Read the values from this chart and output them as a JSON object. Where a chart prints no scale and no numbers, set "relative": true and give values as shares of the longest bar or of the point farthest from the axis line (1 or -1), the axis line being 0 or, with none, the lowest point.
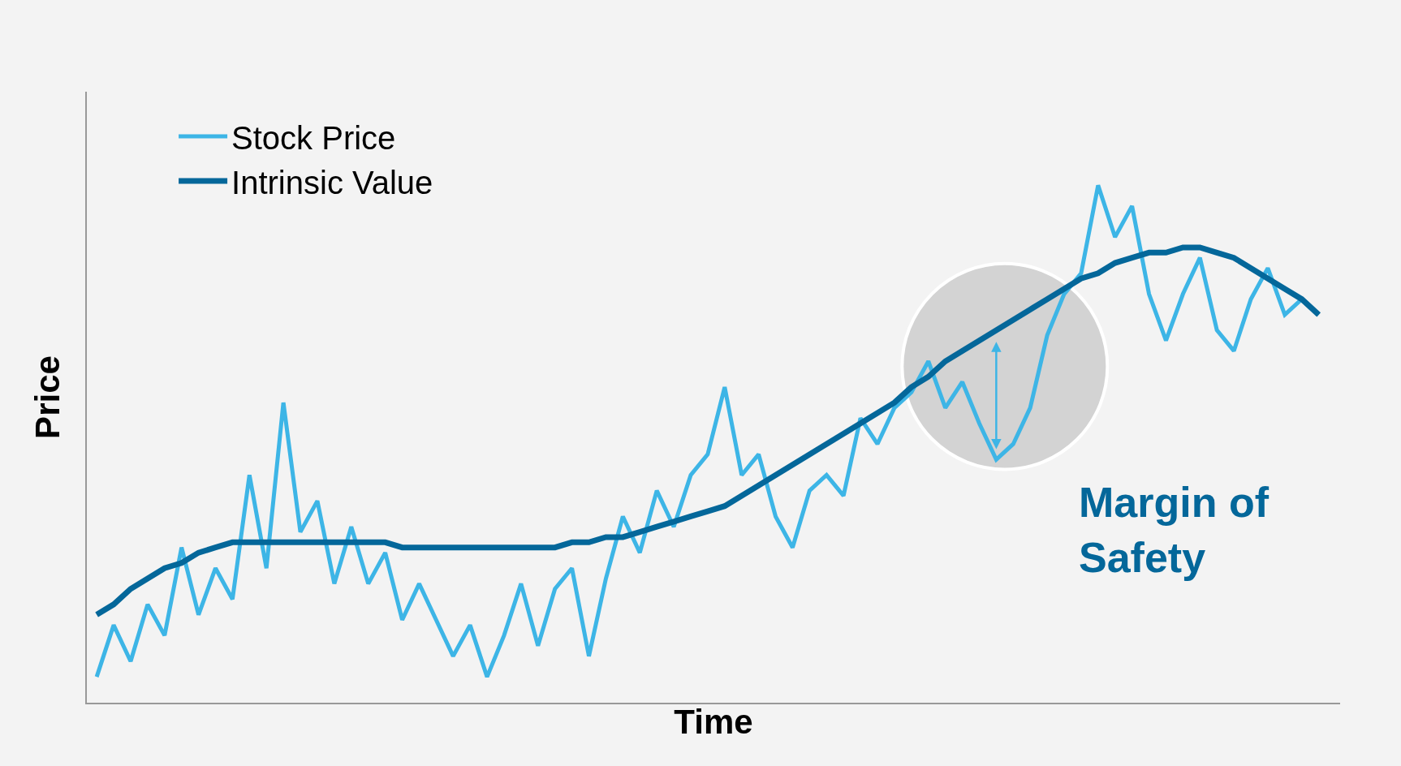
{
  "chart_data": {
    "type": "line",
    "relative": true,
    "xlabel": "Time",
    "ylabel": "Price",
    "categories": [
      null,
      null,
      null,
      null,
      null,
      null,
      null,
      null,
      null,
      null,
      null,
      null,
      null,
      null,
      null,
      null,
      null,
      null,
      null,
      null,
      null,
      null,
      null,
      null,
      null,
      null,
      null,
      null,
      null,
      null,
      null,
      null,
      null,
      null,
      null,
      null,
      null,
      null,
      null,
      null,
      null,
      null,
      null,
      null,
      null,
      null,
      null,
      null,
      null,
      null,
      null,
      null,
      null,
      null,
      null,
      null,
      null,
      null,
      null,
      null,
      null,
      null,
      null,
      null,
      null,
      null,
      null,
      null,
      null,
      null,
      null,
      null,
      null
    ],
    "series": [
      {
        "name": "Stock Price",
        "color": "#3db5e6",
        "values": [
          0.05,
          0.15,
          0.08,
          0.19,
          0.13,
          0.3,
          0.17,
          0.26,
          0.2,
          0.44,
          0.26,
          0.58,
          0.33,
          0.39,
          0.23,
          0.34,
          0.23,
          0.29,
          0.16,
          0.23,
          0.16,
          0.09,
          0.15,
          0.05,
          0.13,
          0.23,
          0.11,
          0.22,
          0.26,
          0.09,
          0.24,
          0.36,
          0.29,
          0.41,
          0.34,
          0.44,
          0.48,
          0.61,
          0.44,
          0.48,
          0.36,
          0.3,
          0.41,
          0.44,
          0.4,
          0.55,
          0.5,
          0.57,
          0.6,
          0.66,
          0.57,
          0.62,
          0.54,
          0.47,
          0.5,
          0.57,
          0.71,
          0.79,
          0.83,
          1.0,
          0.9,
          0.96,
          0.79,
          0.7,
          0.79,
          0.86,
          0.72,
          0.68,
          0.78,
          0.84,
          0.75,
          0.78,
          0.75
        ]
      },
      {
        "name": "Intrinsic Value",
        "color": "#04679a",
        "values": [
          0.17,
          0.19,
          0.22,
          0.24,
          0.26,
          0.27,
          0.29,
          0.3,
          0.31,
          0.31,
          0.31,
          0.31,
          0.31,
          0.31,
          0.31,
          0.31,
          0.31,
          0.31,
          0.3,
          0.3,
          0.3,
          0.3,
          0.3,
          0.3,
          0.3,
          0.3,
          0.3,
          0.3,
          0.31,
          0.31,
          0.32,
          0.32,
          0.33,
          0.34,
          0.35,
          0.36,
          0.37,
          0.38,
          0.4,
          0.42,
          0.44,
          0.46,
          0.48,
          0.5,
          0.52,
          0.54,
          0.56,
          0.58,
          0.61,
          0.63,
          0.66,
          0.68,
          0.7,
          0.72,
          0.74,
          0.76,
          0.78,
          0.8,
          0.82,
          0.83,
          0.85,
          0.86,
          0.87,
          0.87,
          0.88,
          0.88,
          0.87,
          0.86,
          0.84,
          0.82,
          0.8,
          0.78,
          0.75
        ]
      }
    ],
    "annotations": [
      "Margin of Safety"
    ],
    "legend": "top left",
    "grid": false,
    "marker": "none",
    "line_style": "solid"
  }
}
